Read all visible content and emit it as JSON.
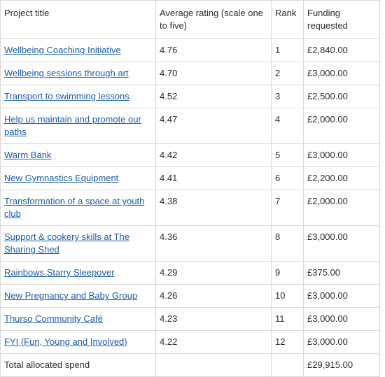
{
  "table": {
    "headers": {
      "title": "Project title",
      "rating": "Average rating (scale one to five)",
      "rank": "Rank",
      "funding": "Funding requested"
    },
    "rows": [
      {
        "title": "Wellbeing Coaching Initiative ",
        "rating": "4.76",
        "rank": "1",
        "funding": "£2,840.00"
      },
      {
        "title": "Wellbeing sessions through art",
        "rating": "4.70",
        "rank": "2",
        "funding": "£3,000.00"
      },
      {
        "title": "Transport to swimming lessons",
        "rating": "4.52",
        "rank": "3",
        "funding": "£2,500.00"
      },
      {
        "title": "Help us maintain and promote our paths",
        "rating": "4.47",
        "rank": "4",
        "funding": "£2,000.00"
      },
      {
        "title": "Warm Bank",
        "rating": "4.42",
        "rank": "5",
        "funding": "£3,000.00"
      },
      {
        "title": "New Gymnastics Equipment",
        "rating": "4.41",
        "rank": "6",
        "funding": "£2,200.00"
      },
      {
        "title": "Transformation of a space at youth club",
        "rating": "4.38",
        "rank": "7",
        "funding": "£2,000.00"
      },
      {
        "title": "Support & cookery skills at The Sharing Shed",
        "rating": "4.36",
        "rank": "8",
        "funding": "£3,000.00"
      },
      {
        "title": "Rainbows Starry Sleepover",
        "rating": "4.29",
        "rank": "9",
        "funding": "£375.00"
      },
      {
        "title": "New Pregnancy and Baby Group",
        "rating": "4.26",
        "rank": "10",
        "funding": "£3,000.00"
      },
      {
        "title": "Thurso Community Café",
        "rating": "4.23",
        "rank": "11",
        "funding": "£3,000.00"
      },
      {
        "title": "FYI (Fun, Young and Involved)",
        "rating": "4.22",
        "rank": "12",
        "funding": "£3,000.00"
      }
    ],
    "total": {
      "label": "Total allocated spend",
      "amount": "£29,915.00"
    },
    "link_color": "#1a5ba8"
  }
}
